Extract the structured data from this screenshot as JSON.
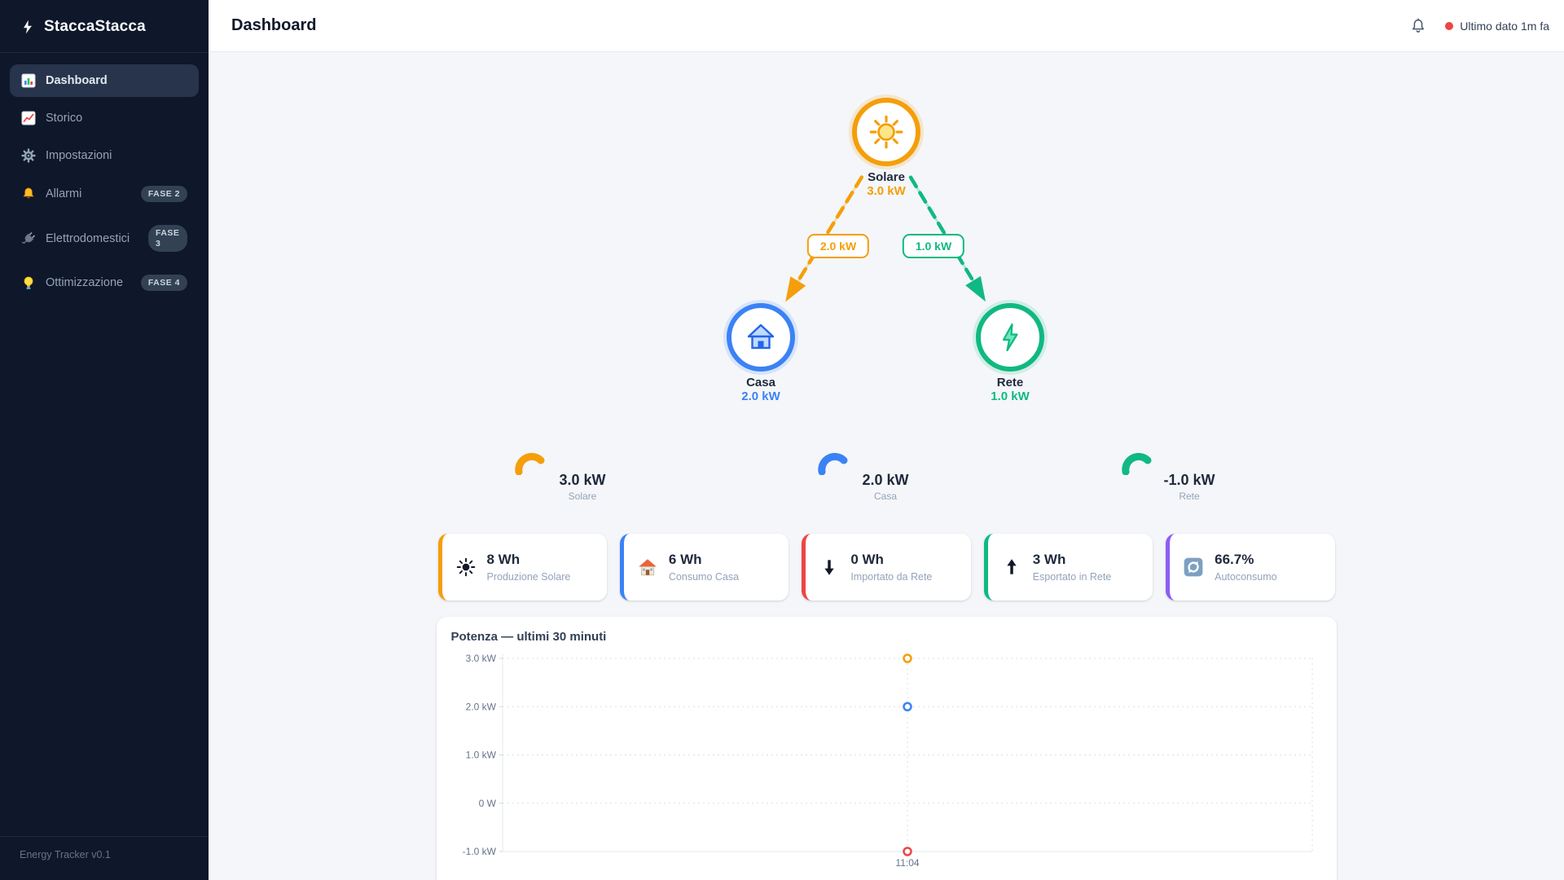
{
  "app": {
    "brand": "StaccaStacca",
    "footer": "Energy Tracker v0.1"
  },
  "header": {
    "title": "Dashboard",
    "status": "Ultimo dato 1m fa",
    "status_color": "#ef4444"
  },
  "sidebar": {
    "items": [
      {
        "label": "Dashboard",
        "icon": "bar-chart-icon",
        "active": true
      },
      {
        "label": "Storico",
        "icon": "line-chart-icon",
        "active": false
      },
      {
        "label": "Impostazioni",
        "icon": "gear-icon",
        "active": false
      },
      {
        "label": "Allarmi",
        "icon": "bell-icon",
        "active": false,
        "badge": "FASE 2"
      },
      {
        "label": "Elettrodomestici",
        "icon": "plug-icon",
        "active": false,
        "badge": "FASE 3"
      },
      {
        "label": "Ottimizzazione",
        "icon": "bulb-icon",
        "active": false,
        "badge": "FASE 4"
      }
    ]
  },
  "flow": {
    "nodes": [
      {
        "name": "Solare",
        "value": "3.0 kW",
        "color": "#f59e0b",
        "icon": "sun-icon"
      },
      {
        "name": "Casa",
        "value": "2.0 kW",
        "color": "#3b82f6",
        "icon": "house-icon"
      },
      {
        "name": "Rete",
        "value": "1.0 kW",
        "color": "#10b981",
        "icon": "bolt-icon"
      }
    ],
    "edges": [
      {
        "label": "2.0 kW",
        "color": "#f59e0b"
      },
      {
        "label": "1.0 kW",
        "color": "#10b981"
      }
    ]
  },
  "gauges": [
    {
      "value": "3.0 kW",
      "label": "Solare",
      "color": "#f59e0b"
    },
    {
      "value": "2.0 kW",
      "label": "Casa",
      "color": "#3b82f6"
    },
    {
      "value": "-1.0 kW",
      "label": "Rete",
      "color": "#10b981"
    }
  ],
  "cards": [
    {
      "value": "8 Wh",
      "label": "Produzione Solare",
      "accent": "#f59e0b",
      "icon": "sun-black-icon"
    },
    {
      "value": "6 Wh",
      "label": "Consumo Casa",
      "accent": "#3b82f6",
      "icon": "house-emoji-icon"
    },
    {
      "value": "0 Wh",
      "label": "Importato da Rete",
      "accent": "#ef4444",
      "icon": "arrow-down-icon"
    },
    {
      "value": "3 Wh",
      "label": "Esportato in Rete",
      "accent": "#10b981",
      "icon": "arrow-up-icon"
    },
    {
      "value": "66.7%",
      "label": "Autoconsumo",
      "accent": "#8b5cf6",
      "icon": "recycle-icon"
    }
  ],
  "chart_data": {
    "type": "scatter",
    "title": "Potenza — ultimi 30 minuti",
    "x": [
      "11:04"
    ],
    "x_positions": [
      0.5
    ],
    "series": [
      {
        "name": "Solare",
        "color": "#f59e0b",
        "values": [
          3.0
        ]
      },
      {
        "name": "Casa",
        "color": "#3b82f6",
        "values": [
          2.0
        ]
      },
      {
        "name": "Rete",
        "color": "#ef4444",
        "values": [
          -1.0
        ]
      }
    ],
    "ylim": [
      -1.0,
      3.0
    ],
    "y_ticks": [
      {
        "value": 3.0,
        "label": "3.0 kW"
      },
      {
        "value": 2.0,
        "label": "2.0 kW"
      },
      {
        "value": 1.0,
        "label": "1.0 kW"
      },
      {
        "value": 0.0,
        "label": "0 W"
      },
      {
        "value": -1.0,
        "label": "-1.0 kW"
      }
    ],
    "grid": "dotted",
    "legend": "none"
  },
  "palette": {
    "orange": "#f59e0b",
    "blue": "#3b82f6",
    "green": "#10b981",
    "red": "#ef4444",
    "purple": "#8b5cf6",
    "sidebar_bg": "#0f172a"
  }
}
